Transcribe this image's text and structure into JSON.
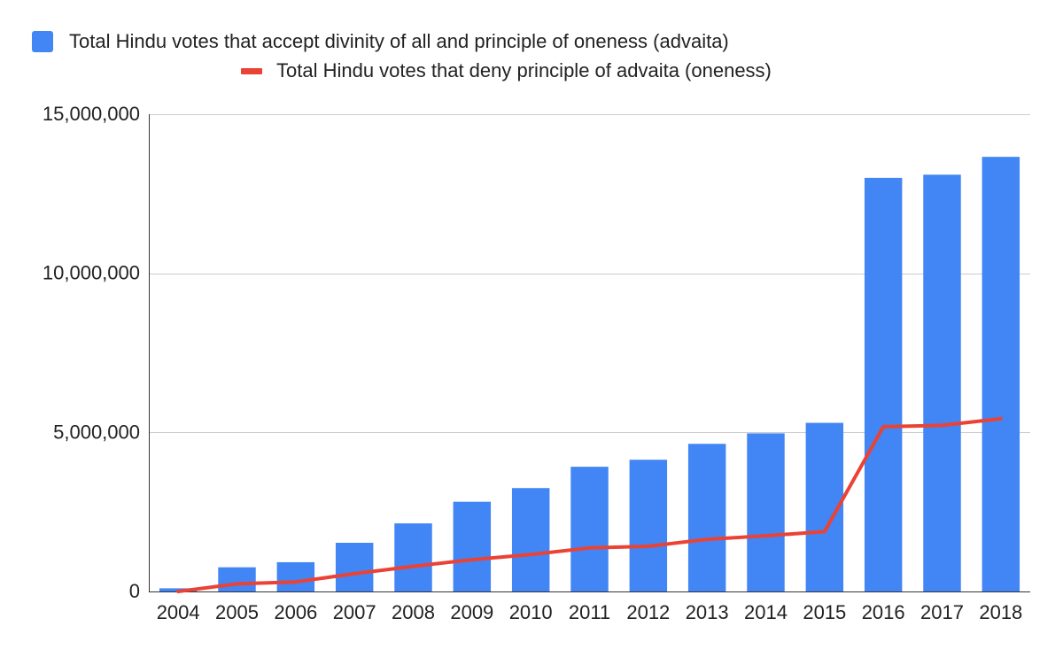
{
  "colors": {
    "bar_series": "#4285f4",
    "line_series": "#ea4335",
    "gridline": "#cccccc",
    "axis": "#333333",
    "text": "#222222"
  },
  "chart_data": {
    "type": "bar",
    "title": "",
    "xlabel": "",
    "ylabel": "",
    "categories": [
      "2004",
      "2005",
      "2006",
      "2007",
      "2008",
      "2009",
      "2010",
      "2011",
      "2012",
      "2013",
      "2014",
      "2015",
      "2016",
      "2017",
      "2018"
    ],
    "series": [
      {
        "name": "Total Hindu votes that accept divinity of all and principle of oneness (advaita)",
        "type": "bar",
        "color": "#4285f4",
        "values": [
          100000,
          760000,
          920000,
          1530000,
          2140000,
          2820000,
          3250000,
          3920000,
          4140000,
          4640000,
          4970000,
          5300000,
          13000000,
          13100000,
          13660000
        ]
      },
      {
        "name": "Total Hindu votes that deny principle of advaita (oneness)",
        "type": "line",
        "color": "#ea4335",
        "values": [
          0,
          240000,
          300000,
          560000,
          790000,
          1000000,
          1160000,
          1370000,
          1420000,
          1640000,
          1750000,
          1880000,
          5180000,
          5220000,
          5430000
        ]
      }
    ],
    "ylim": [
      0,
      15000000
    ],
    "yticks": [
      0,
      5000000,
      10000000,
      15000000
    ],
    "ytick_labels": [
      "0",
      "5,000,000",
      "10,000,000",
      "15,000,000"
    ],
    "grid": true,
    "legend_position": "top"
  }
}
